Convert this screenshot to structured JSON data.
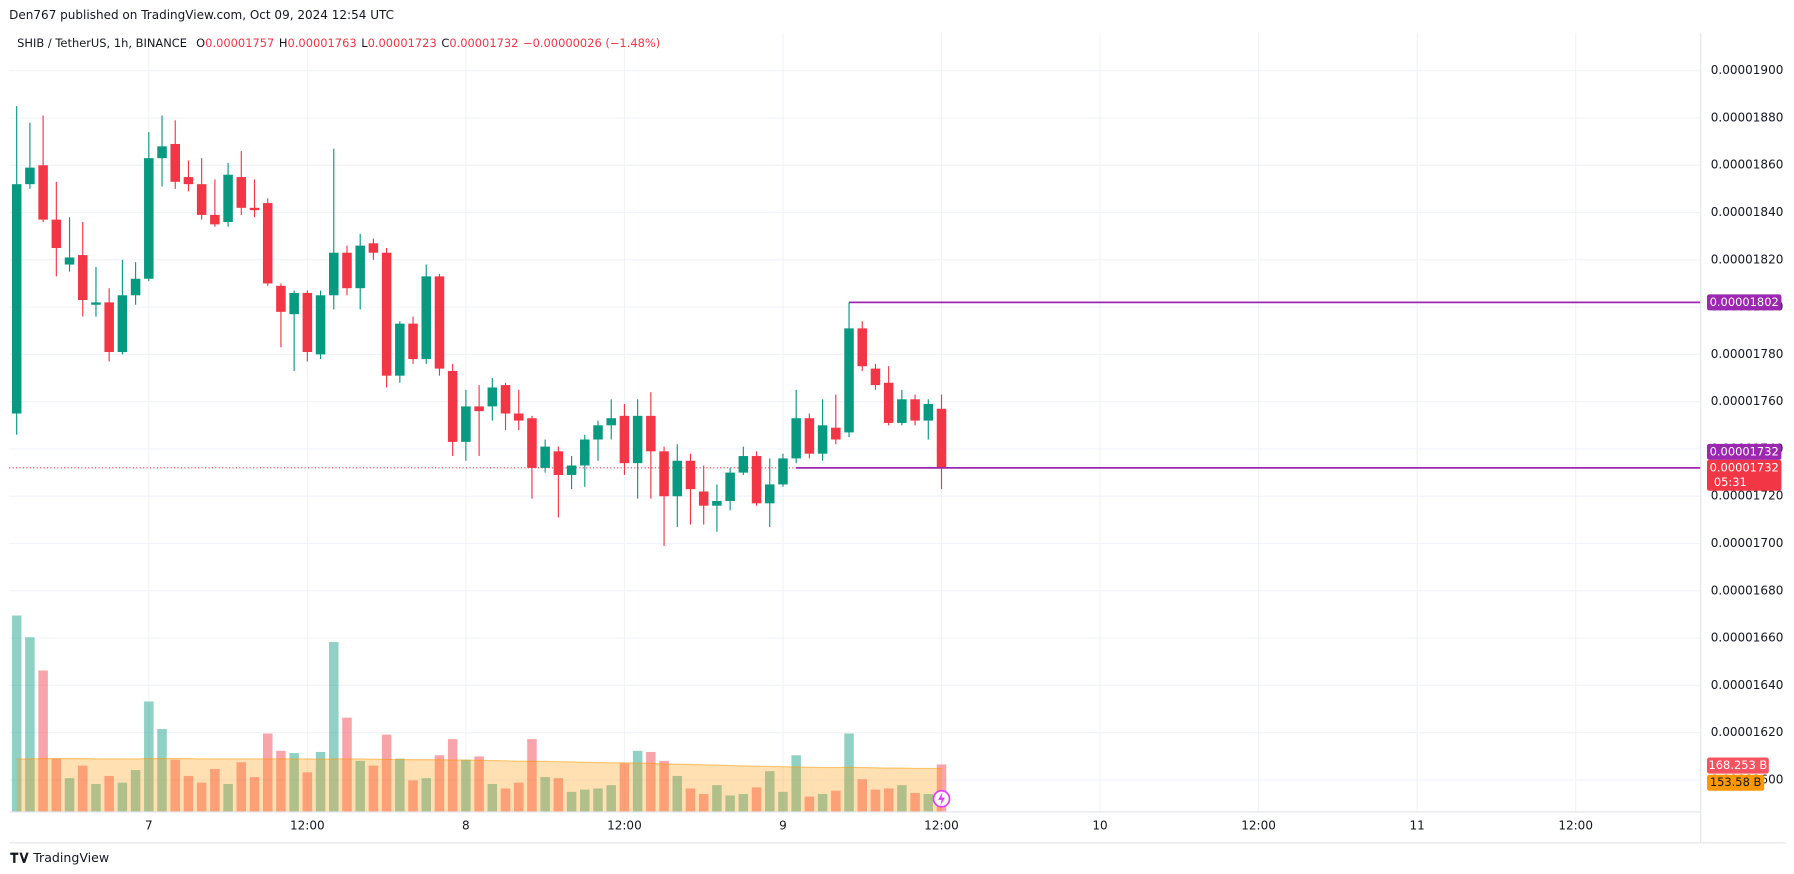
{
  "header": {
    "published": "Den767 published on TradingView.com, Oct 09, 2024 12:54 UTC",
    "brand": "TradingView"
  },
  "chart_data": {
    "type": "candlestick",
    "legend": {
      "symbol": "SHIB / TetherUS, 1h, BINANCE",
      "open_key": "O",
      "high_key": "H",
      "low_key": "L",
      "close_key": "C",
      "change": "−0.00000026 (−1.48%)"
    },
    "x": [
      14,
      15,
      16,
      17,
      18,
      19,
      20,
      21,
      22,
      23,
      24,
      25,
      26,
      27,
      28,
      29,
      30,
      31,
      32,
      33,
      34,
      35,
      36,
      37,
      38,
      39,
      40,
      41,
      42,
      43,
      44,
      45,
      46,
      47,
      48,
      49,
      50,
      51,
      52,
      53,
      54,
      55,
      56,
      57,
      58,
      59,
      60,
      61,
      62,
      63,
      64,
      65,
      66,
      67,
      68,
      69,
      70,
      71,
      72,
      73,
      74,
      75,
      76,
      77,
      78,
      79,
      80,
      81,
      82,
      83,
      84
    ],
    "open": [
      1.755e-05,
      1.852e-05,
      1.86e-05,
      1.837e-05,
      1.818e-05,
      1.822e-05,
      1.801e-05,
      1.802e-05,
      1.781e-05,
      1.805e-05,
      1.812e-05,
      1.863e-05,
      1.869e-05,
      1.855e-05,
      1.852e-05,
      1.839e-05,
      1.836e-05,
      1.855e-05,
      1.842e-05,
      1.844e-05,
      1.809e-05,
      1.797e-05,
      1.806e-05,
      1.78e-05,
      1.805e-05,
      1.823e-05,
      1.808e-05,
      1.827e-05,
      1.823e-05,
      1.771e-05,
      1.793e-05,
      1.778e-05,
      1.813e-05,
      1.773e-05,
      1.743e-05,
      1.758e-05,
      1.758e-05,
      1.767e-05,
      1.755e-05,
      1.753e-05,
      1.732e-05,
      1.739e-05,
      1.729e-05,
      1.733e-05,
      1.744e-05,
      1.75e-05,
      1.754e-05,
      1.734e-05,
      1.754e-05,
      1.739e-05,
      1.72e-05,
      1.735e-05,
      1.722e-05,
      1.716e-05,
      1.718e-05,
      1.73e-05,
      1.737e-05,
      1.717e-05,
      1.725e-05,
      1.736e-05,
      1.753e-05,
      1.738e-05,
      1.749e-05,
      1.747e-05,
      1.791e-05,
      1.774e-05,
      1.768e-05,
      1.751e-05,
      1.761e-05,
      1.752e-05,
      1.757e-05
    ],
    "high": [
      1.885e-05,
      1.878e-05,
      1.881e-05,
      1.853e-05,
      1.838e-05,
      1.836e-05,
      1.817e-05,
      1.808e-05,
      1.82e-05,
      1.819e-05,
      1.874e-05,
      1.881e-05,
      1.879e-05,
      1.862e-05,
      1.863e-05,
      1.854e-05,
      1.861e-05,
      1.866e-05,
      1.854e-05,
      1.846e-05,
      1.81e-05,
      1.807e-05,
      1.807e-05,
      1.807e-05,
      1.867e-05,
      1.826e-05,
      1.831e-05,
      1.829e-05,
      1.825e-05,
      1.794e-05,
      1.796e-05,
      1.818e-05,
      1.814e-05,
      1.776e-05,
      1.765e-05,
      1.767e-05,
      1.77e-05,
      1.768e-05,
      1.765e-05,
      1.754e-05,
      1.744e-05,
      1.741e-05,
      1.737e-05,
      1.746e-05,
      1.752e-05,
      1.761e-05,
      1.759e-05,
      1.761e-05,
      1.764e-05,
      1.741e-05,
      1.742e-05,
      1.738e-05,
      1.733e-05,
      1.725e-05,
      1.732e-05,
      1.741e-05,
      1.739e-05,
      1.736e-05,
      1.738e-05,
      1.765e-05,
      1.755e-05,
      1.761e-05,
      1.763e-05,
      1.802e-05,
      1.794e-05,
      1.776e-05,
      1.775e-05,
      1.765e-05,
      1.763e-05,
      1.761e-05,
      1.763e-05
    ],
    "low": [
      1.746e-05,
      1.85e-05,
      1.836e-05,
      1.813e-05,
      1.815e-05,
      1.796e-05,
      1.796e-05,
      1.777e-05,
      1.78e-05,
      1.801e-05,
      1.811e-05,
      1.851e-05,
      1.85e-05,
      1.849e-05,
      1.837e-05,
      1.834e-05,
      1.834e-05,
      1.839e-05,
      1.838e-05,
      1.809e-05,
      1.783e-05,
      1.773e-05,
      1.777e-05,
      1.778e-05,
      1.799e-05,
      1.805e-05,
      1.799e-05,
      1.82e-05,
      1.766e-05,
      1.768e-05,
      1.776e-05,
      1.776e-05,
      1.771e-05,
      1.737e-05,
      1.735e-05,
      1.737e-05,
      1.752e-05,
      1.748e-05,
      1.748e-05,
      1.719e-05,
      1.73e-05,
      1.711e-05,
      1.723e-05,
      1.724e-05,
      1.735e-05,
      1.744e-05,
      1.729e-05,
      1.719e-05,
      1.719e-05,
      1.699e-05,
      1.707e-05,
      1.708e-05,
      1.708e-05,
      1.705e-05,
      1.714e-05,
      1.729e-05,
      1.716e-05,
      1.707e-05,
      1.724e-05,
      1.734e-05,
      1.736e-05,
      1.735e-05,
      1.742e-05,
      1.745e-05,
      1.773e-05,
      1.765e-05,
      1.75e-05,
      1.75e-05,
      1.75e-05,
      1.744e-05,
      1.723e-05
    ],
    "close": [
      1.852e-05,
      1.859e-05,
      1.837e-05,
      1.825e-05,
      1.821e-05,
      1.803e-05,
      1.802e-05,
      1.781e-05,
      1.805e-05,
      1.812e-05,
      1.863e-05,
      1.868e-05,
      1.853e-05,
      1.852e-05,
      1.839e-05,
      1.835e-05,
      1.856e-05,
      1.842e-05,
      1.841e-05,
      1.81e-05,
      1.798e-05,
      1.806e-05,
      1.781e-05,
      1.805e-05,
      1.823e-05,
      1.808e-05,
      1.826e-05,
      1.823e-05,
      1.771e-05,
      1.793e-05,
      1.778e-05,
      1.813e-05,
      1.774e-05,
      1.743e-05,
      1.758e-05,
      1.756e-05,
      1.766e-05,
      1.755e-05,
      1.752e-05,
      1.732e-05,
      1.741e-05,
      1.729e-05,
      1.733e-05,
      1.744e-05,
      1.75e-05,
      1.753e-05,
      1.734e-05,
      1.754e-05,
      1.739e-05,
      1.72e-05,
      1.735e-05,
      1.723e-05,
      1.716e-05,
      1.718e-05,
      1.73e-05,
      1.737e-05,
      1.717e-05,
      1.725e-05,
      1.736e-05,
      1.753e-05,
      1.738e-05,
      1.75e-05,
      1.744e-05,
      1.791e-05,
      1.775e-05,
      1.767e-05,
      1.751e-05,
      1.761e-05,
      1.752e-05,
      1.759e-05,
      1.732e-05
    ],
    "up_color": "#089981",
    "down_color": "#f23645",
    "xlim": [
      13.43,
      141.42
    ],
    "xticks": [
      {
        "value": 24,
        "label": "7"
      },
      {
        "value": 36,
        "label": "12:00"
      },
      {
        "value": 48,
        "label": "8"
      },
      {
        "value": 60,
        "label": "12:00"
      },
      {
        "value": 72,
        "label": "9"
      },
      {
        "value": 84,
        "label": "12:00"
      },
      {
        "value": 96,
        "label": "10"
      },
      {
        "value": 108,
        "label": "12:00"
      },
      {
        "value": 120,
        "label": "11"
      },
      {
        "value": 132,
        "label": "12:00"
      }
    ],
    "ylim": [
      1.5867e-05,
      1.916e-05
    ],
    "yticks": [
      {
        "value": 1.6e-05,
        "label": "0.00001600"
      },
      {
        "value": 1.62e-05,
        "label": "0.00001620"
      },
      {
        "value": 1.64e-05,
        "label": "0.00001640"
      },
      {
        "value": 1.66e-05,
        "label": "0.00001660"
      },
      {
        "value": 1.68e-05,
        "label": "0.00001680"
      },
      {
        "value": 1.7e-05,
        "label": "0.00001700"
      },
      {
        "value": 1.72e-05,
        "label": "0.00001720"
      },
      {
        "value": 1.74e-05,
        "label": "0.00001740"
      },
      {
        "value": 1.76e-05,
        "label": "0.00001760"
      },
      {
        "value": 1.78e-05,
        "label": "0.00001780"
      },
      {
        "value": 1.8e-05,
        "label": "0.00001800"
      },
      {
        "value": 1.82e-05,
        "label": "0.00001820"
      },
      {
        "value": 1.84e-05,
        "label": "0.00001840"
      },
      {
        "value": 1.86e-05,
        "label": "0.00001860"
      },
      {
        "value": 1.88e-05,
        "label": "0.00001880"
      },
      {
        "value": 1.9e-05,
        "label": "0.00001900"
      }
    ],
    "grid": true,
    "y2lim": [
      0,
      2790
    ],
    "volume": {
      "axis": "y2",
      "values": [
        702,
        624,
        505,
        189,
        119,
        164,
        98,
        127,
        103,
        148,
        394,
        295,
        185,
        127,
        103,
        152,
        98,
        176,
        123,
        279,
        217,
        209,
        140,
        213,
        607,
        336,
        181,
        164,
        275,
        189,
        111,
        119,
        201,
        259,
        185,
        197,
        98,
        82,
        103,
        259,
        123,
        119,
        70,
        78,
        82,
        94,
        172,
        217,
        213,
        181,
        127,
        82,
        62,
        94,
        57,
        62,
        86,
        144,
        70,
        201,
        53,
        62,
        74,
        279,
        115,
        78,
        82,
        94,
        66,
        62,
        168.253
      ],
      "value_labels": [
        null,
        null,
        null,
        null,
        null,
        null,
        null,
        null,
        null,
        null,
        null,
        null,
        null,
        null,
        null,
        null,
        null,
        null,
        null,
        null,
        null,
        null,
        null,
        null,
        null,
        null,
        null,
        null,
        null,
        null,
        null,
        null,
        null,
        null,
        null,
        null,
        null,
        null,
        null,
        null,
        null,
        null,
        null,
        null,
        null,
        null,
        null,
        null,
        null,
        null,
        null,
        null,
        null,
        null,
        null,
        null,
        null,
        null,
        null,
        null,
        null,
        null,
        null,
        null,
        null,
        null,
        null,
        null,
        null,
        null,
        "168.253 B"
      ]
    },
    "volume_ma": {
      "axis": "y2",
      "color": "#ff9800",
      "values": [
        188,
        188,
        189,
        189,
        189,
        189,
        188,
        188,
        188,
        188,
        189,
        189,
        189,
        189,
        188,
        188,
        188,
        188,
        188,
        188,
        188,
        188,
        188,
        187,
        188,
        188,
        188,
        187,
        186,
        186,
        185,
        185,
        185,
        184,
        184,
        183,
        182,
        181,
        180,
        180,
        179,
        178,
        177,
        176,
        175,
        174,
        174,
        173,
        172,
        170,
        169,
        168,
        167,
        166,
        164,
        163,
        162,
        161,
        160,
        159,
        158,
        157,
        157,
        158,
        157,
        156,
        155,
        155,
        154,
        154,
        153.58
      ],
      "value_labels": [
        null,
        null,
        null,
        null,
        null,
        null,
        null,
        null,
        null,
        null,
        null,
        null,
        null,
        null,
        null,
        null,
        null,
        null,
        null,
        null,
        null,
        null,
        null,
        null,
        null,
        null,
        null,
        null,
        null,
        null,
        null,
        null,
        null,
        null,
        null,
        null,
        null,
        null,
        null,
        null,
        null,
        null,
        null,
        null,
        null,
        null,
        null,
        null,
        null,
        null,
        null,
        null,
        null,
        null,
        null,
        null,
        null,
        null,
        null,
        null,
        null,
        null,
        null,
        null,
        null,
        null,
        null,
        null,
        null,
        null,
        "153.58 B"
      ]
    },
    "levels": [
      {
        "value": 1.802e-05,
        "from": 77,
        "color": "#9c27b0"
      },
      {
        "value": 1.732e-05,
        "from": 73,
        "color": "#9c27b0"
      }
    ],
    "countdown": "05:31"
  }
}
